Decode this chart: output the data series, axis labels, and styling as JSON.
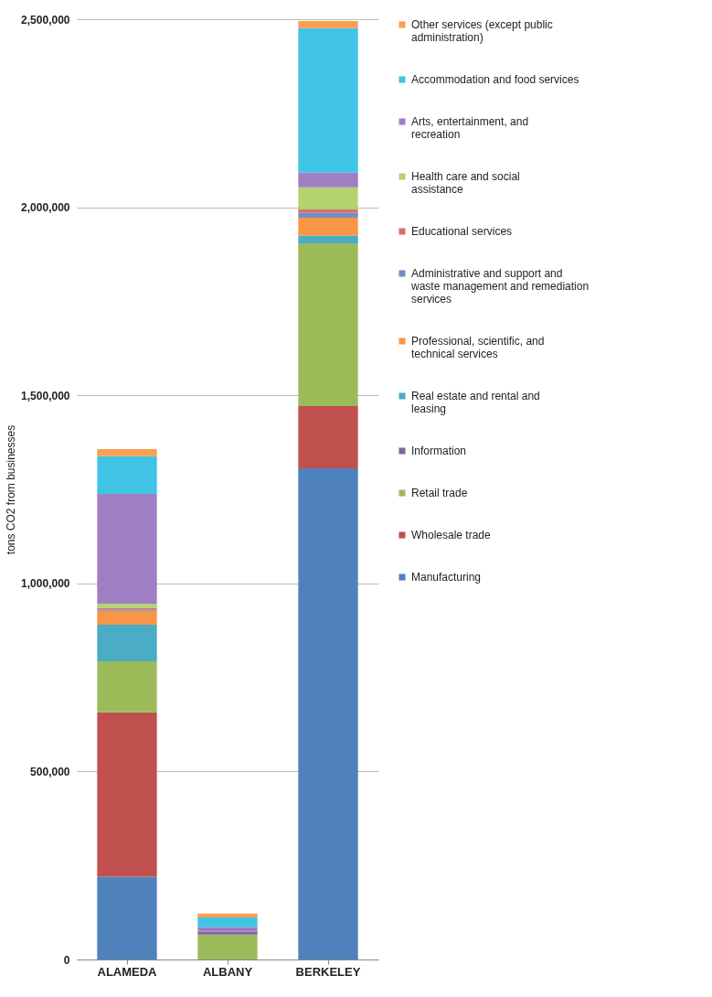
{
  "chart_data": {
    "type": "bar",
    "stacked": true,
    "ylabel": "tons CO2 from businesses",
    "categories": [
      "ALAMEDA",
      "ALBANY",
      "BERKELEY"
    ],
    "series": [
      {
        "name": "Manufacturing",
        "color": "#4f81bd",
        "values": [
          220000,
          null,
          1306000
        ]
      },
      {
        "name": "Wholesale trade",
        "color": "#c0504d",
        "values": [
          437000,
          null,
          165000
        ]
      },
      {
        "name": "Retail trade",
        "color": "#9bbb59",
        "values": [
          136000,
          66000,
          433000
        ]
      },
      {
        "name": "Information",
        "color": "#8064a2",
        "values": [
          null,
          8000,
          null
        ]
      },
      {
        "name": "Real estate and rental and leasing",
        "color": "#4bacc6",
        "values": [
          97000,
          null,
          20000
        ]
      },
      {
        "name": "Professional, scientific, and technical services",
        "color": "#f79646",
        "values": [
          37000,
          null,
          48000
        ]
      },
      {
        "name": "Administrative and support and waste management and remediation services",
        "color": "#6f8fc7",
        "values": [
          4000,
          null,
          13000
        ]
      },
      {
        "name": "Educational services",
        "color": "#d9706d",
        "values": [
          4000,
          null,
          9000
        ]
      },
      {
        "name": "Health care and social assistance",
        "color": "#b3d36f",
        "values": [
          11000,
          null,
          59000
        ]
      },
      {
        "name": "Arts, entertainment, and recreation",
        "color": "#9e7fc4",
        "values": [
          292000,
          12000,
          39000
        ]
      },
      {
        "name": "Accommodation and food services",
        "color": "#40c4e6",
        "values": [
          100000,
          26000,
          384000
        ]
      },
      {
        "name": "Other services (except public administration)",
        "color": "#f8a050",
        "values": [
          19000,
          10000,
          19000
        ]
      }
    ],
    "ylim": [
      0,
      2500000
    ],
    "yticks": [
      0,
      {
        "value": 500000,
        "label": "500,000"
      },
      {
        "value": 1000000,
        "label": "1,000,000"
      },
      {
        "value": 1500000,
        "label": "1,500,000"
      },
      {
        "value": 2000000,
        "label": "2,000,000"
      },
      {
        "value": 2500000,
        "label": "2,500,000"
      }
    ],
    "grid": "y",
    "legend": "right"
  }
}
